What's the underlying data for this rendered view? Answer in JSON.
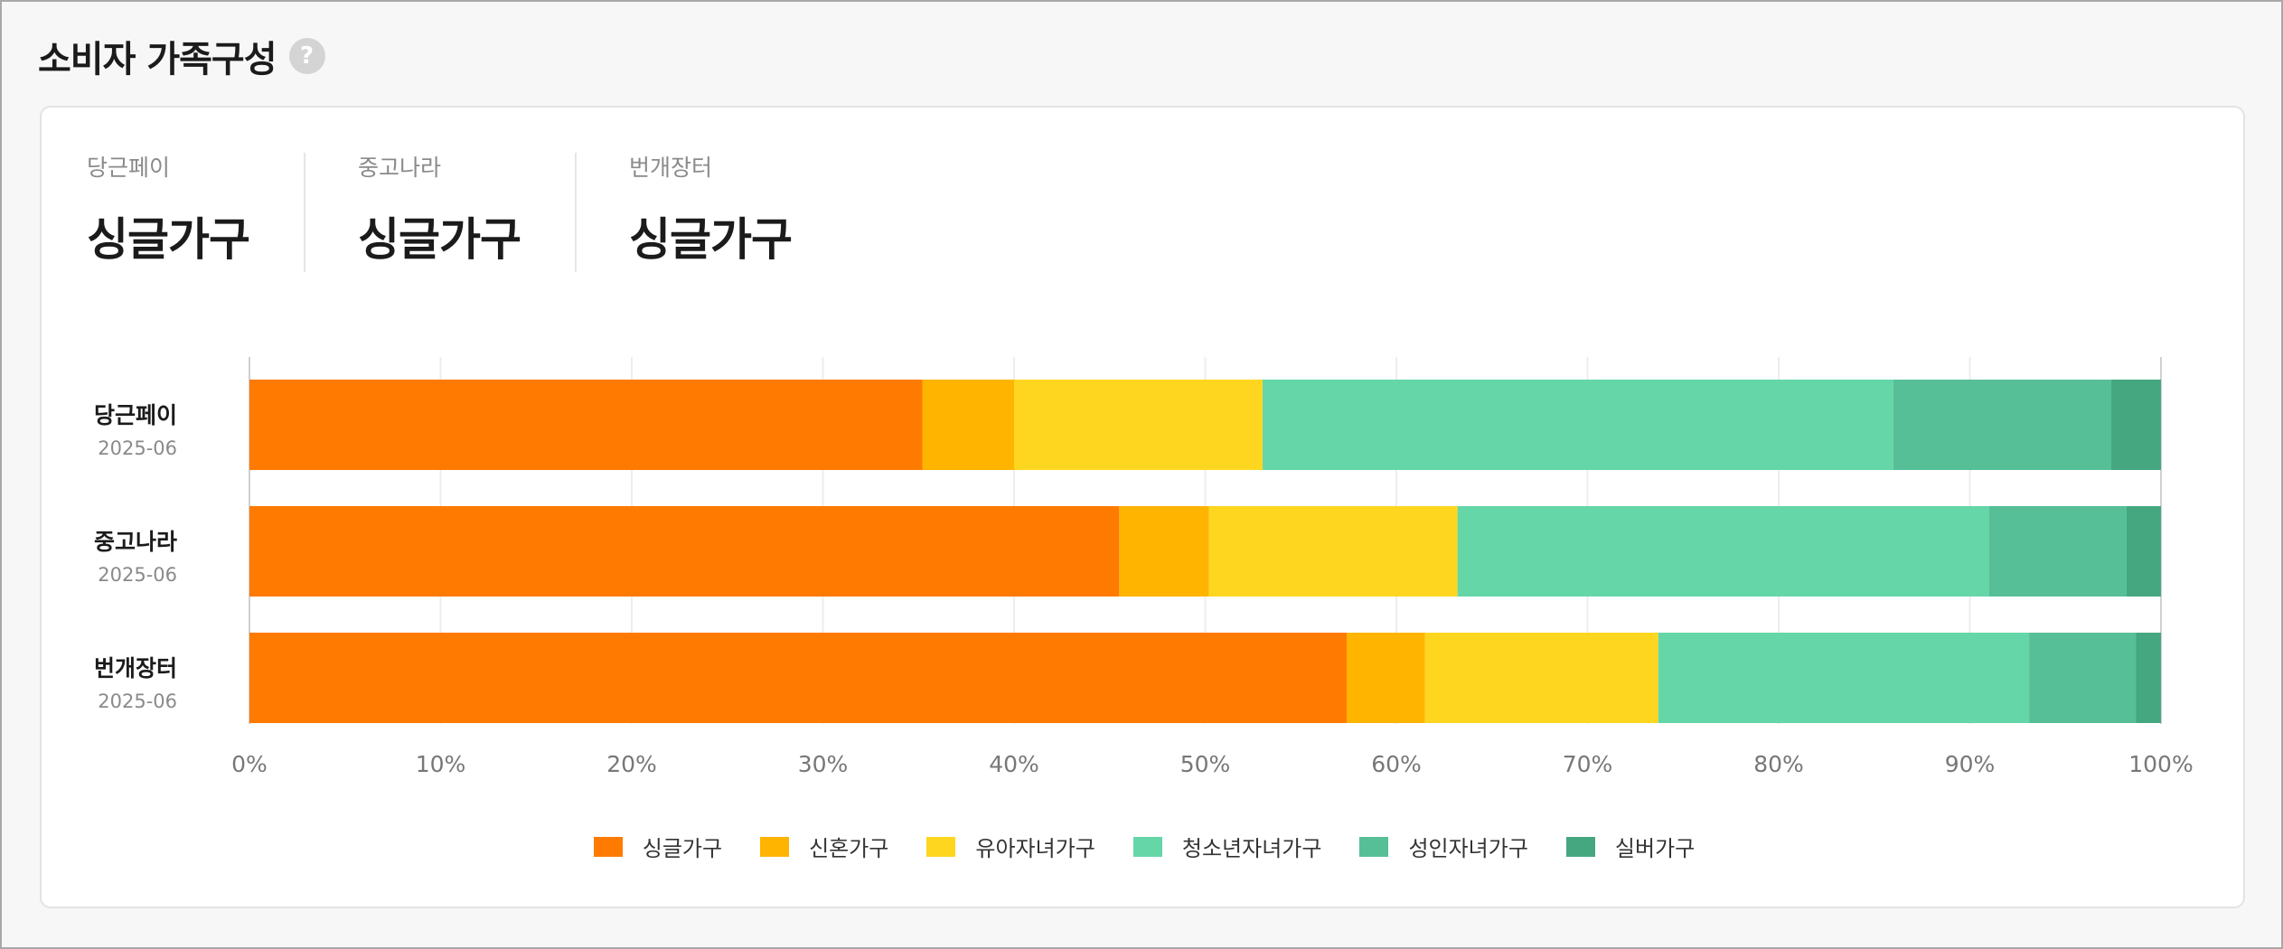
{
  "header": {
    "title": "소비자 가족구성",
    "help_glyph": "?"
  },
  "summary": [
    {
      "label": "당근페이",
      "value": "싱글가구"
    },
    {
      "label": "중고나라",
      "value": "싱글가구"
    },
    {
      "label": "번개장터",
      "value": "싱글가구"
    }
  ],
  "chart_data": {
    "type": "bar",
    "orientation": "horizontal",
    "stacked": true,
    "categories": [
      {
        "name": "당근페이",
        "date": "2025-06"
      },
      {
        "name": "중고나라",
        "date": "2025-06"
      },
      {
        "name": "번개장터",
        "date": "2025-06"
      }
    ],
    "series": [
      {
        "name": "싱글가구",
        "color": "#ff7a00",
        "values": [
          35.2,
          45.5,
          57.4
        ]
      },
      {
        "name": "신혼가구",
        "color": "#ffb400",
        "values": [
          4.8,
          4.7,
          4.1
        ]
      },
      {
        "name": "유아자녀가구",
        "color": "#ffd61f",
        "values": [
          13.0,
          13.0,
          12.2
        ]
      },
      {
        "name": "청소년자녀가구",
        "color": "#64d6a8",
        "values": [
          33.0,
          27.8,
          19.4
        ]
      },
      {
        "name": "성인자녀가구",
        "color": "#56bf98",
        "values": [
          11.4,
          7.2,
          5.6
        ]
      },
      {
        "name": "실버가구",
        "color": "#45a77f",
        "values": [
          2.6,
          1.8,
          1.3
        ]
      }
    ],
    "xlim": [
      0,
      100
    ],
    "xticks": [
      "0%",
      "10%",
      "20%",
      "30%",
      "40%",
      "50%",
      "60%",
      "70%",
      "80%",
      "90%",
      "100%"
    ],
    "grid": true,
    "legend_position": "bottom-center"
  }
}
